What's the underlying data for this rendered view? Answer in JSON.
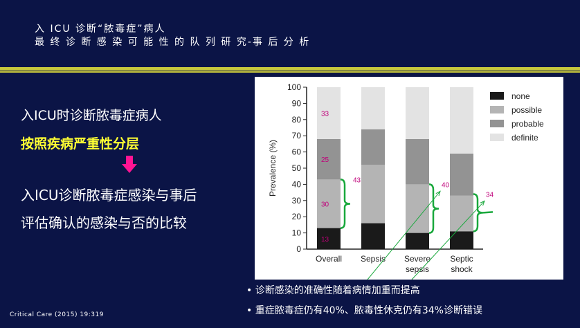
{
  "slide": {
    "title_line1": "入 ICU 诊断“脓毒症”病人",
    "title_line2": "最 终 诊 断 感 染 可 能 性 的 队 列 研 究-事 后 分 析",
    "left_line1": "入ICU时诊断脓毒症病人",
    "left_line2": "按照疾病严重性分层",
    "left_line3": "入ICU诊断脓毒症感染与事后",
    "left_line4": "评估确认的感染与否的比较",
    "bullet1": "• 诊断感染的准确性随着病情加重而提高",
    "bullet2": "• 重症脓毒症仍有40%、脓毒性休克仍有34%诊断错误",
    "source": "Critical  Care  (2015)  19:319",
    "arrow_color": "#ff1493"
  },
  "chart_data": {
    "type": "bar",
    "stacked": true,
    "ylabel": "Prevalence (%)",
    "xlabel": "",
    "ylim": [
      0,
      100
    ],
    "yticks": [
      "0",
      "10",
      "20",
      "30",
      "40",
      "50",
      "60",
      "70",
      "80",
      "90",
      "100"
    ],
    "categories": [
      {
        "line1": "Overall",
        "line2": ""
      },
      {
        "line1": "Sepsis",
        "line2": ""
      },
      {
        "line1": "Severe",
        "line2": "sepsis"
      },
      {
        "line1": "Septic",
        "line2": "shock"
      }
    ],
    "series": [
      {
        "name": "none",
        "color": "#1a1a1a",
        "values": [
          13,
          16,
          10,
          11
        ]
      },
      {
        "name": "possible",
        "color": "#b4b4b4",
        "values": [
          30,
          36,
          30,
          22
        ]
      },
      {
        "name": "probable",
        "color": "#939393",
        "values": [
          25,
          22,
          28,
          26
        ]
      },
      {
        "name": "definite",
        "color": "#e3e3e3",
        "values": [
          33,
          26,
          33,
          42
        ]
      }
    ],
    "legend_position": "right",
    "segment_labels": [
      {
        "category": 0,
        "series": 0,
        "text": "13"
      },
      {
        "category": 0,
        "series": 1,
        "text": "30"
      },
      {
        "category": 0,
        "series": 2,
        "text": "25"
      },
      {
        "category": 0,
        "series": 3,
        "text": "33"
      }
    ],
    "annotations": [
      {
        "category": 0,
        "text": "43",
        "range": [
          13,
          43
        ]
      },
      {
        "category": 2,
        "text": "40",
        "range": [
          10,
          40
        ]
      },
      {
        "category": 3,
        "text": "34",
        "range": [
          11,
          34
        ]
      }
    ],
    "label_color": "#c0007a",
    "bracket_color": "#19a83c"
  }
}
